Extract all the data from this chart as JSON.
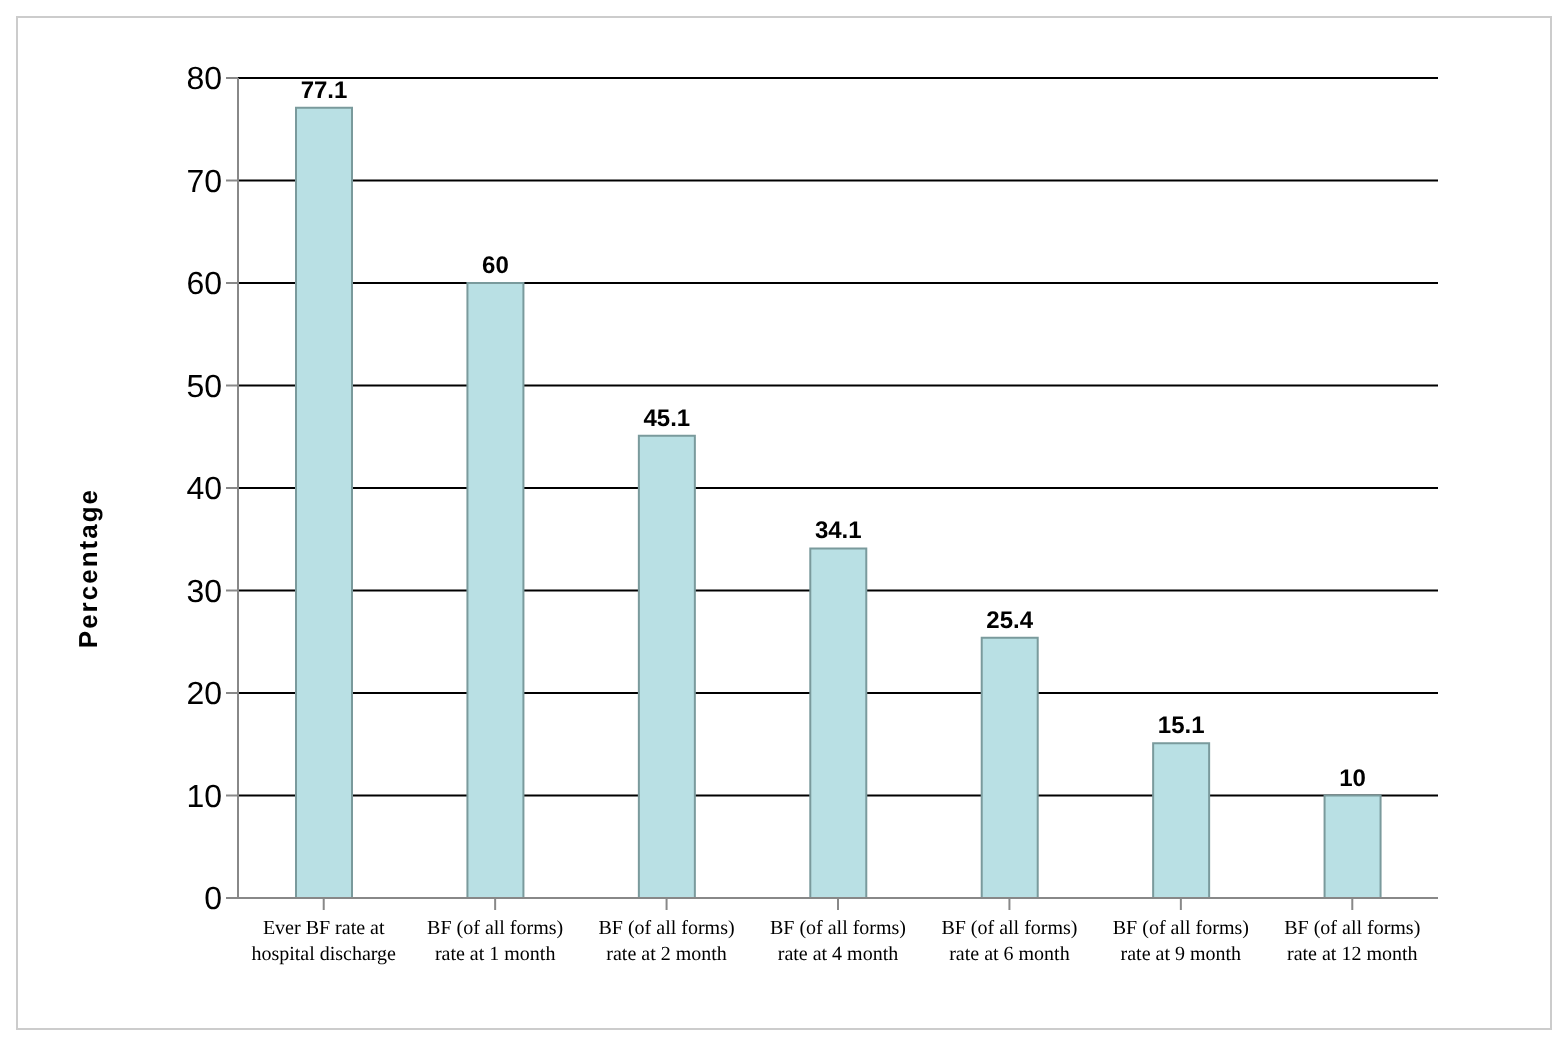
{
  "chart_data": {
    "type": "bar",
    "ylabel": "Percentage",
    "categories": [
      "Ever BF rate at hospital discharge",
      "BF (of all forms) rate at 1 month",
      "BF (of all forms) rate at 2 month",
      "BF (of all forms) rate at 4 month",
      "BF (of all forms) rate at 6 month",
      "BF (of all forms) rate at 9 month",
      "BF (of all forms) rate at 12 month"
    ],
    "values": [
      77.1,
      60,
      45.1,
      34.1,
      25.4,
      15.1,
      10
    ],
    "color": "#b9e0e4",
    "data_labels": true,
    "ylim": [
      0,
      80
    ],
    "yticks": [
      0,
      10,
      20,
      30,
      40,
      50,
      60,
      70,
      80
    ],
    "grid": "y"
  }
}
